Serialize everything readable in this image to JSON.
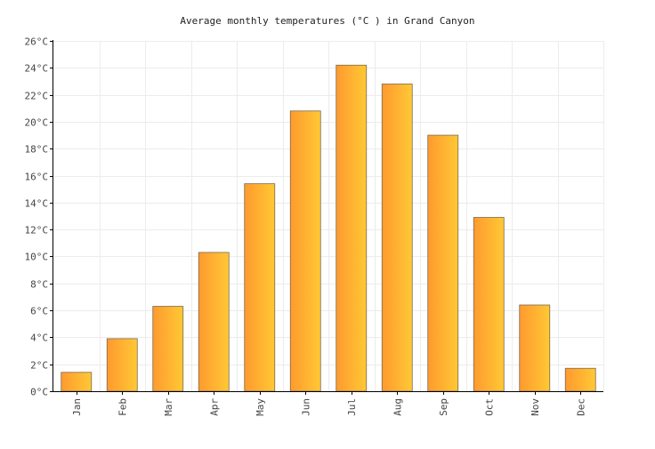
{
  "chart_data": {
    "type": "bar",
    "title": "Average monthly temperatures (°C ) in Grand Canyon",
    "xlabel": "",
    "ylabel": "",
    "categories": [
      "Jan",
      "Feb",
      "Mar",
      "Apr",
      "May",
      "Jun",
      "Jul",
      "Aug",
      "Sep",
      "Oct",
      "Nov",
      "Dec"
    ],
    "values": [
      1.4,
      3.9,
      6.3,
      10.3,
      15.4,
      20.8,
      24.2,
      22.8,
      19.0,
      12.9,
      6.4,
      1.7
    ],
    "ylim": [
      0,
      26
    ],
    "yticks": [
      0,
      2,
      4,
      6,
      8,
      10,
      12,
      14,
      16,
      18,
      20,
      22,
      24,
      26
    ],
    "ytick_labels": [
      "0°C",
      "2°C",
      "4°C",
      "6°C",
      "8°C",
      "10°C",
      "12°C",
      "14°C",
      "16°C",
      "18°C",
      "20°C",
      "22°C",
      "24°C",
      "26°C"
    ],
    "grid": true,
    "colors": {
      "bar_left": "#ff9a2f",
      "bar_right": "#ffc835",
      "bar_stroke": "#7a6a50",
      "grid": "#ececec"
    }
  }
}
